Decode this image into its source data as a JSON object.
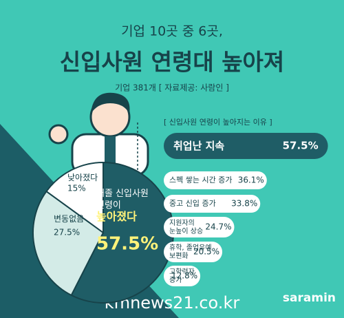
{
  "header": {
    "kicker": "기업 10곳 중 6곳,",
    "title": "신입사원 연령대 높아져",
    "subtitle": "기업 381개 [ 자료제공: 사람인 ]"
  },
  "footer": {
    "watermark": "kmnews21.co.kr",
    "brand": "saramin"
  },
  "chart_data": [
    {
      "type": "pie",
      "categories": [
        "대졸 신입사원\n연령이\n높아졌다",
        "변동없음",
        "낮아졌다"
      ],
      "values": [
        57.5,
        27.5,
        15
      ],
      "value_labels": [
        "57.5%",
        "27.5%",
        "15%"
      ],
      "colors": [
        "#1f5d66",
        "#d3ebe7",
        "#ffffff"
      ]
    },
    {
      "type": "bar",
      "title": "[ 신입사원 연령이 높아지는 이유 ]",
      "categories": [
        "취업난 지속",
        "스펙 쌓는 시간 증가",
        "중고 신입 증가",
        "지원자의\n눈높이 상승",
        "휴학, 졸업유예\n보편화",
        "고학력자\n증가"
      ],
      "values": [
        57.5,
        36.1,
        33.8,
        24.7,
        20.5,
        12.8
      ],
      "value_labels": [
        "57.5%",
        "36.1%",
        "33.8%",
        "24.7%",
        "20.5%",
        "12.8%"
      ],
      "colors": [
        "#1f5d66",
        "#ffffff"
      ]
    }
  ]
}
